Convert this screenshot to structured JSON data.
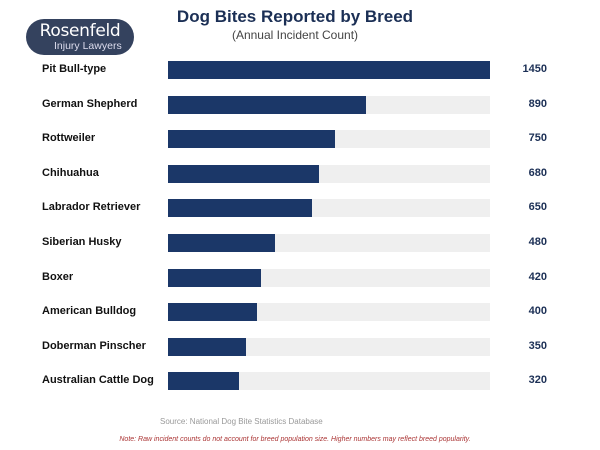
{
  "logo": {
    "line1": "Rosenfeld",
    "line2": "Injury Lawyers"
  },
  "chart_data": {
    "type": "bar",
    "orientation": "horizontal",
    "title": "Dog Bites Reported by Breed",
    "subtitle": "(Annual Incident Count)",
    "categories": [
      "Pit Bull-type",
      "German Shepherd",
      "Rottweiler",
      "Chihuahua",
      "Labrador Retriever",
      "Siberian Husky",
      "Boxer",
      "American Bulldog",
      "Doberman Pinscher",
      "Australian Cattle Dog"
    ],
    "values": [
      1450,
      890,
      750,
      680,
      650,
      480,
      420,
      400,
      350,
      320
    ],
    "xlim": [
      0,
      1450
    ],
    "bar_color": "#1b3768",
    "track_color": "#efefef",
    "source": "Source: National Dog Bite Statistics Database",
    "note": "Note: Raw incident counts do not account for breed population size. Higher numbers may reflect breed popularity."
  }
}
